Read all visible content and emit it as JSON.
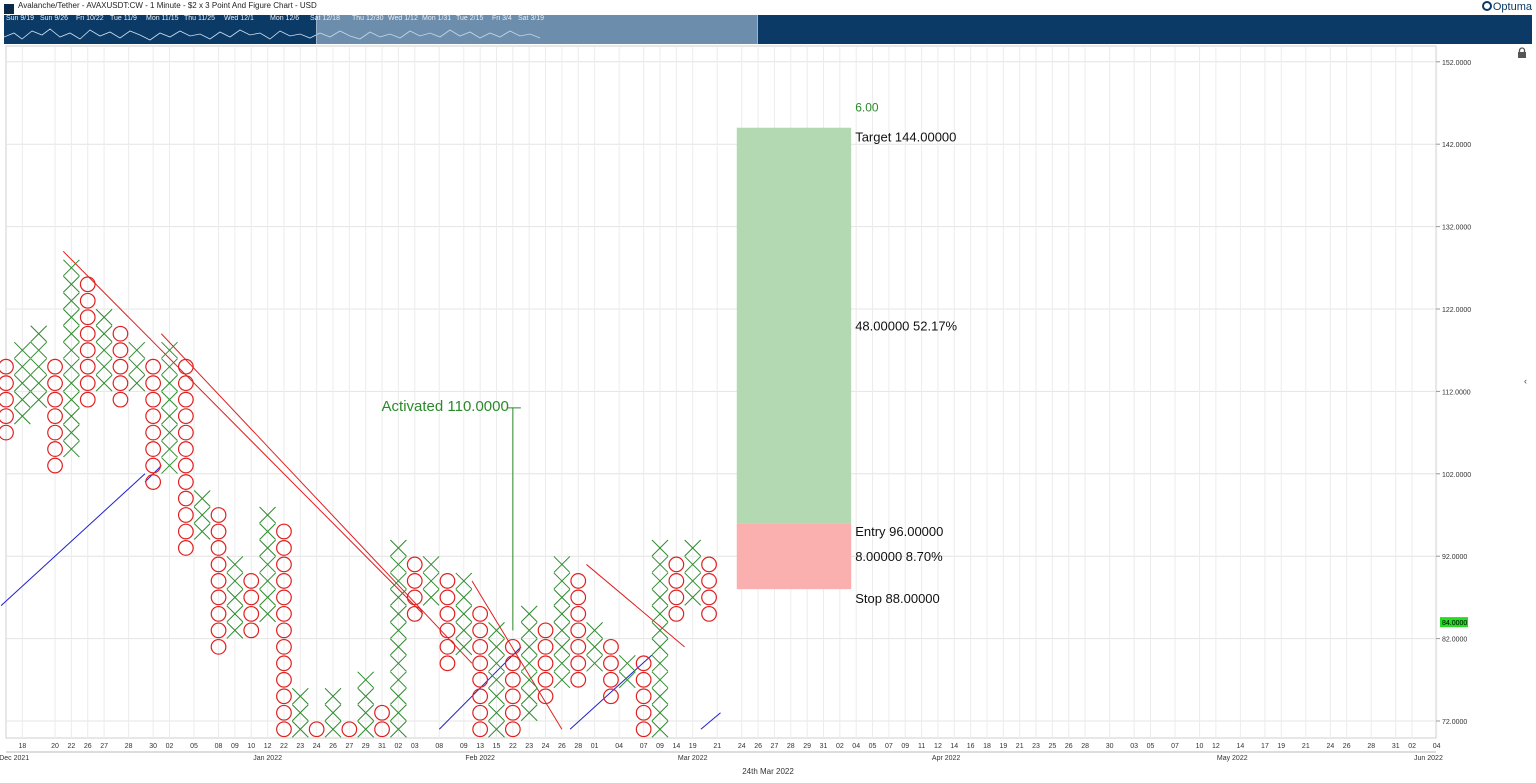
{
  "title": "Avalanche/Tether - AVAXUSDT:CW - 1 Minute - $2 x 3 Point And Figure Chart - USD",
  "logo": "Optuma",
  "navigator": {
    "dates": [
      "Sun 9/19",
      "Sun 9/26",
      "Fri 10/22",
      "Tue 11/9",
      "Mon 11/15",
      "Thu 11/25",
      "Wed 12/1",
      "Mon 12/6",
      "Sat 12/18",
      "Thu 12/30",
      "Wed 1/12",
      "Mon 1/31",
      "Tue 2/15",
      "Fri 3/4",
      "Sat 3/19"
    ]
  },
  "footer_date": "24th Mar 2022",
  "colors": {
    "x_mark": "#2e8b2e",
    "o_mark": "#e02020",
    "resistance": "#e02020",
    "support": "#2020d0",
    "target_zone": "#b2d9b2",
    "stop_zone": "#fbb0b0",
    "annotation": "#2a8a2a",
    "price_tag": "#22dd22"
  },
  "chart_data": {
    "type": "point_and_figure",
    "box_size": 2,
    "reversal": 3,
    "ylim": [
      71,
      156
    ],
    "y_ticks": [
      "152.0000",
      "142.0000",
      "132.0000",
      "122.0000",
      "112.0000",
      "102.0000",
      "92.0000",
      "82.0000",
      "72.0000"
    ],
    "last_price": "84.0000",
    "columns": [
      {
        "type": "O",
        "low": 107,
        "high": 115
      },
      {
        "type": "X",
        "low": 109,
        "high": 117
      },
      {
        "type": "X",
        "low": 111,
        "high": 119
      },
      {
        "type": "O",
        "low": 103,
        "high": 115
      },
      {
        "type": "X",
        "low": 105,
        "high": 127
      },
      {
        "type": "O",
        "low": 111,
        "high": 125
      },
      {
        "type": "X",
        "low": 113,
        "high": 121
      },
      {
        "type": "O",
        "low": 111,
        "high": 119
      },
      {
        "type": "X",
        "low": 113,
        "high": 117
      },
      {
        "type": "O",
        "low": 101,
        "high": 115
      },
      {
        "type": "X",
        "low": 103,
        "high": 117
      },
      {
        "type": "O",
        "low": 93,
        "high": 115
      },
      {
        "type": "X",
        "low": 95,
        "high": 99
      },
      {
        "type": "O",
        "low": 81,
        "high": 97
      },
      {
        "type": "X",
        "low": 83,
        "high": 91
      },
      {
        "type": "O",
        "low": 83,
        "high": 89
      },
      {
        "type": "X",
        "low": 85,
        "high": 97
      },
      {
        "type": "O",
        "low": 71,
        "high": 95
      },
      {
        "type": "X",
        "low": 71,
        "high": 75
      },
      {
        "type": "O",
        "low": 71,
        "high": 71
      },
      {
        "type": "X",
        "low": 71,
        "high": 75
      },
      {
        "type": "O",
        "low": 71,
        "high": 71
      },
      {
        "type": "X",
        "low": 71,
        "high": 77
      },
      {
        "type": "O",
        "low": 71,
        "high": 73
      },
      {
        "type": "X",
        "low": 71,
        "high": 93
      },
      {
        "type": "O",
        "low": 85,
        "high": 91
      },
      {
        "type": "X",
        "low": 87,
        "high": 91
      },
      {
        "type": "O",
        "low": 79,
        "high": 89
      },
      {
        "type": "X",
        "low": 81,
        "high": 89
      },
      {
        "type": "O",
        "low": 71,
        "high": 85
      },
      {
        "type": "X",
        "low": 71,
        "high": 83
      },
      {
        "type": "O",
        "low": 71,
        "high": 81
      },
      {
        "type": "X",
        "low": 73,
        "high": 85
      },
      {
        "type": "O",
        "low": 75,
        "high": 83
      },
      {
        "type": "X",
        "low": 77,
        "high": 91
      },
      {
        "type": "O",
        "low": 77,
        "high": 89
      },
      {
        "type": "X",
        "low": 79,
        "high": 83
      },
      {
        "type": "O",
        "low": 75,
        "high": 81
      },
      {
        "type": "X",
        "low": 77,
        "high": 79
      },
      {
        "type": "O",
        "low": 71,
        "high": 79
      },
      {
        "type": "X",
        "low": 71,
        "high": 93
      },
      {
        "type": "O",
        "low": 85,
        "high": 91
      },
      {
        "type": "X",
        "low": 87,
        "high": 93
      },
      {
        "type": "O",
        "low": 85,
        "high": 91
      }
    ],
    "x_axis": [
      {
        "label": "18",
        "col": 1
      },
      {
        "label": "20",
        "col": 3
      },
      {
        "label": "22",
        "col": 4
      },
      {
        "label": "26",
        "col": 5
      },
      {
        "label": "27",
        "col": 6
      },
      {
        "label": "28",
        "col": 7.5
      },
      {
        "label": "30",
        "col": 9
      },
      {
        "label": "02",
        "col": 10
      },
      {
        "label": "05",
        "col": 11.5
      },
      {
        "label": "08",
        "col": 13
      },
      {
        "label": "09",
        "col": 14
      },
      {
        "label": "10",
        "col": 15
      },
      {
        "label": "12",
        "col": 16
      },
      {
        "label": "22",
        "col": 17
      },
      {
        "label": "23",
        "col": 18
      },
      {
        "label": "24",
        "col": 19
      },
      {
        "label": "26",
        "col": 20
      },
      {
        "label": "27",
        "col": 21
      },
      {
        "label": "29",
        "col": 22
      },
      {
        "label": "31",
        "col": 23
      },
      {
        "label": "02",
        "col": 24
      },
      {
        "label": "03",
        "col": 25
      },
      {
        "label": "08",
        "col": 26.5
      },
      {
        "label": "09",
        "col": 28
      },
      {
        "label": "13",
        "col": 29
      },
      {
        "label": "15",
        "col": 30
      },
      {
        "label": "22",
        "col": 31
      },
      {
        "label": "23",
        "col": 32
      },
      {
        "label": "24",
        "col": 33
      },
      {
        "label": "26",
        "col": 34
      },
      {
        "label": "28",
        "col": 35
      },
      {
        "label": "01",
        "col": 36
      },
      {
        "label": "04",
        "col": 37.5
      },
      {
        "label": "07",
        "col": 39
      },
      {
        "label": "09",
        "col": 40
      },
      {
        "label": "14",
        "col": 41
      },
      {
        "label": "19",
        "col": 42
      },
      {
        "label": "21",
        "col": 43.5
      },
      {
        "label": "24",
        "col": 45
      },
      {
        "label": "26",
        "col": 46
      },
      {
        "label": "27",
        "col": 47
      },
      {
        "label": "28",
        "col": 48
      },
      {
        "label": "29",
        "col": 49
      },
      {
        "label": "31",
        "col": 50
      },
      {
        "label": "02",
        "col": 51
      },
      {
        "label": "04",
        "col": 52
      },
      {
        "label": "05",
        "col": 53
      },
      {
        "label": "07",
        "col": 54
      },
      {
        "label": "09",
        "col": 55
      },
      {
        "label": "11",
        "col": 56
      },
      {
        "label": "12",
        "col": 57
      },
      {
        "label": "14",
        "col": 58
      },
      {
        "label": "16",
        "col": 59
      },
      {
        "label": "18",
        "col": 60
      },
      {
        "label": "19",
        "col": 61
      },
      {
        "label": "21",
        "col": 62
      },
      {
        "label": "23",
        "col": 63
      },
      {
        "label": "25",
        "col": 64
      },
      {
        "label": "26",
        "col": 65
      },
      {
        "label": "28",
        "col": 66
      },
      {
        "label": "30",
        "col": 67.5
      },
      {
        "label": "03",
        "col": 69
      },
      {
        "label": "05",
        "col": 70
      },
      {
        "label": "07",
        "col": 71.5
      },
      {
        "label": "10",
        "col": 73
      },
      {
        "label": "12",
        "col": 74
      },
      {
        "label": "14",
        "col": 75.5
      },
      {
        "label": "17",
        "col": 77
      },
      {
        "label": "19",
        "col": 78
      },
      {
        "label": "21",
        "col": 79.5
      },
      {
        "label": "24",
        "col": 81
      },
      {
        "label": "26",
        "col": 82
      },
      {
        "label": "28",
        "col": 83.5
      },
      {
        "label": "31",
        "col": 85
      },
      {
        "label": "02",
        "col": 86
      },
      {
        "label": "04",
        "col": 87.5
      }
    ],
    "month_labels": [
      {
        "label": "Dec 2021",
        "col": 0.5
      },
      {
        "label": "Jan 2022",
        "col": 16
      },
      {
        "label": "Feb 2022",
        "col": 29
      },
      {
        "label": "Mar 2022",
        "col": 42
      },
      {
        "label": "Apr 2022",
        "col": 57.5
      },
      {
        "label": "May 2022",
        "col": 75
      },
      {
        "label": "Jun 2022",
        "col": 87
      }
    ],
    "trendlines": [
      {
        "kind": "resistance",
        "points": [
          [
            3.5,
            129
          ],
          [
            25.5,
            85
          ]
        ]
      },
      {
        "kind": "resistance",
        "points": [
          [
            9.5,
            119
          ],
          [
            28.5,
            79
          ]
        ]
      },
      {
        "kind": "resistance",
        "points": [
          [
            28.5,
            89
          ],
          [
            34,
            71
          ]
        ]
      },
      {
        "kind": "resistance",
        "points": [
          [
            35.5,
            91
          ],
          [
            41.5,
            81
          ]
        ]
      },
      {
        "kind": "support",
        "points": [
          [
            -0.3,
            86
          ],
          [
            8.5,
            102
          ]
        ]
      },
      {
        "kind": "support",
        "points": [
          [
            8.5,
            101
          ],
          [
            9.5,
            103
          ]
        ]
      },
      {
        "kind": "support",
        "points": [
          [
            26.5,
            71
          ],
          [
            31.5,
            81
          ]
        ]
      },
      {
        "kind": "support",
        "points": [
          [
            34.5,
            71
          ],
          [
            39.5,
            80
          ]
        ]
      },
      {
        "kind": "support",
        "points": [
          [
            42.5,
            71
          ],
          [
            43.7,
            73
          ]
        ]
      }
    ],
    "activation": {
      "label": "Activated 110.0000",
      "col": 31,
      "from": 83,
      "to": 110
    },
    "projection": {
      "target_label": "Target  144.00000",
      "entry_label": "Entry  96.00000",
      "stop_label": "Stop  88.00000",
      "reward_label": "48.00000  52.17%",
      "risk_label": "8.00000  8.70%",
      "ratio_label": "6.00",
      "target": 144,
      "entry": 96,
      "stop": 88,
      "col_start": 45,
      "col_end": 52
    }
  }
}
